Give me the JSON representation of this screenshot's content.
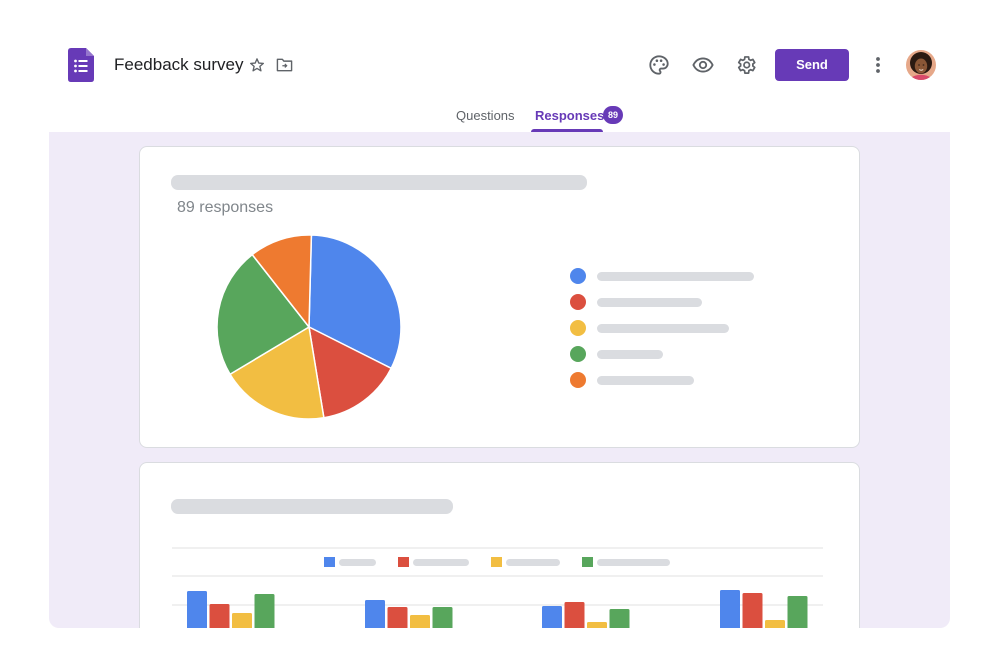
{
  "app": {
    "title": "Feedback survey",
    "send_label": "Send"
  },
  "tabs": {
    "questions_label": "Questions",
    "responses_label": "Responses",
    "responses_count": "89"
  },
  "icons": {
    "logo": "forms-logo-icon",
    "star": "star-icon",
    "folder": "move-to-folder-icon",
    "palette": "palette-icon",
    "preview": "eye-icon",
    "settings": "gear-icon",
    "more": "more-vert-icon"
  },
  "colors": {
    "accent": "#673ab7",
    "canvas": "#f0ebf8",
    "skeleton": "#dadce0",
    "blue": "#4f86ec",
    "red": "#db4f3f",
    "yellow": "#f2be42",
    "green": "#58a65c",
    "orange": "#ee7a30"
  },
  "summary": {
    "responses_text": "89 responses"
  },
  "chart_data": [
    {
      "type": "pie",
      "values": [
        32,
        15,
        19,
        23,
        11
      ],
      "colors": [
        "#4f86ec",
        "#db4f3f",
        "#f2be42",
        "#58a65c",
        "#ee7a30"
      ]
    },
    {
      "type": "bar",
      "series": [
        {
          "color": "#4f86ec",
          "values": [
            42,
            33,
            27,
            43
          ]
        },
        {
          "color": "#db4f3f",
          "values": [
            29,
            26,
            31,
            40
          ]
        },
        {
          "color": "#f2be42",
          "values": [
            20,
            18,
            11,
            13
          ]
        },
        {
          "color": "#58a65c",
          "values": [
            39,
            26,
            24,
            37
          ]
        }
      ],
      "ylim": [
        0,
        60
      ]
    }
  ]
}
